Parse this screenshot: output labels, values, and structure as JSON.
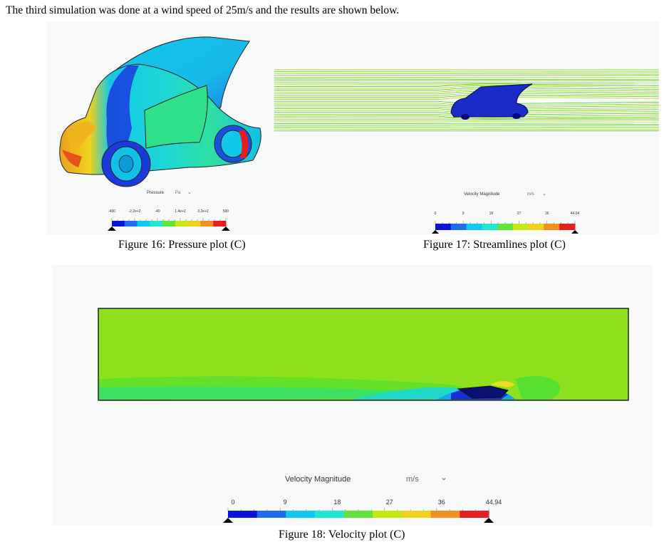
{
  "intro_text": "The third simulation was done at a wind speed of 25m/s and the results are shown below.",
  "figure16": {
    "caption": "Figure 16: Pressure plot (C)",
    "legend_title": "Pressure",
    "unit": "Pa",
    "ticks": [
      "-400",
      "-2.2e+2",
      "-40",
      "1.4e+2",
      "3.2e+2",
      "500"
    ]
  },
  "figure17": {
    "caption": "Figure 17: Streamlines plot (C)",
    "legend_title": "Velocity Magnitude",
    "unit": "m/s",
    "ticks": [
      "0",
      "9",
      "18",
      "27",
      "36",
      "44.94"
    ]
  },
  "figure18": {
    "caption": "Figure 18: Velocity plot (C)",
    "legend_title": "Velocity Magnitude",
    "unit": "m/s",
    "ticks": [
      "0",
      "9",
      "18",
      "27",
      "36",
      "44.94"
    ]
  },
  "colors": {
    "field_green": "#8ee21d",
    "legend_scale": [
      "#0a14d8",
      "#1f6cf0",
      "#12c8f0",
      "#1ee8d0",
      "#66e23c",
      "#c8e814",
      "#f0d21e",
      "#f0901e",
      "#e81e1e"
    ]
  }
}
